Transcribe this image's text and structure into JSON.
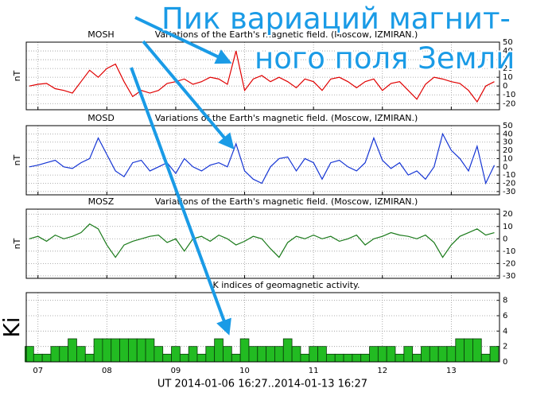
{
  "chart_data": [
    {
      "type": "line",
      "label": "MOSH",
      "title": "Variations of the Earth's magnetic field. (Moscow, IZMIRAN.)",
      "ylabel": "nT",
      "color": "#e00000",
      "grid": true,
      "xlim": [
        6.83,
        13.7
      ],
      "xticks": [
        7,
        8,
        9,
        10,
        11,
        12,
        13
      ],
      "ylim": [
        -27,
        50
      ],
      "yticks": [
        50,
        40,
        30,
        20,
        10,
        0,
        -10,
        -20
      ],
      "x": [
        6.875,
        7,
        7.125,
        7.25,
        7.375,
        7.5,
        7.625,
        7.75,
        7.875,
        8,
        8.125,
        8.25,
        8.375,
        8.5,
        8.625,
        8.75,
        8.875,
        9,
        9.125,
        9.25,
        9.375,
        9.5,
        9.625,
        9.75,
        9.875,
        10,
        10.125,
        10.25,
        10.375,
        10.5,
        10.625,
        10.75,
        10.875,
        11,
        11.125,
        11.25,
        11.375,
        11.5,
        11.625,
        11.75,
        11.875,
        12,
        12.125,
        12.25,
        12.375,
        12.5,
        12.625,
        12.75,
        12.875,
        13,
        13.125,
        13.25,
        13.375,
        13.5,
        13.625
      ],
      "values": [
        0,
        2,
        3,
        -3,
        -5,
        -8,
        5,
        18,
        10,
        20,
        25,
        5,
        -12,
        -5,
        -8,
        -5,
        3,
        5,
        8,
        2,
        5,
        10,
        8,
        2,
        40,
        -5,
        8,
        12,
        5,
        10,
        5,
        -2,
        8,
        5,
        -5,
        8,
        10,
        5,
        -2,
        5,
        8,
        -5,
        3,
        5,
        -5,
        -15,
        2,
        10,
        8,
        5,
        3,
        -5,
        -18,
        0,
        5
      ]
    },
    {
      "type": "line",
      "label": "MOSD",
      "title": "Variations of the Earth's magnetic field. (Moscow, IZMIRAN.)",
      "ylabel": "nT",
      "color": "#1434d4",
      "grid": true,
      "xlim": [
        6.83,
        13.7
      ],
      "xticks": [
        7,
        8,
        9,
        10,
        11,
        12,
        13
      ],
      "ylim": [
        -34,
        50
      ],
      "yticks": [
        50,
        40,
        30,
        20,
        10,
        0,
        -10,
        -20,
        -30
      ],
      "x": [
        6.875,
        7,
        7.125,
        7.25,
        7.375,
        7.5,
        7.625,
        7.75,
        7.875,
        8,
        8.125,
        8.25,
        8.375,
        8.5,
        8.625,
        8.75,
        8.875,
        9,
        9.125,
        9.25,
        9.375,
        9.5,
        9.625,
        9.75,
        9.875,
        10,
        10.125,
        10.25,
        10.375,
        10.5,
        10.625,
        10.75,
        10.875,
        11,
        11.125,
        11.25,
        11.375,
        11.5,
        11.625,
        11.75,
        11.875,
        12,
        12.125,
        12.25,
        12.375,
        12.5,
        12.625,
        12.75,
        12.875,
        13,
        13.125,
        13.25,
        13.375,
        13.5,
        13.625
      ],
      "values": [
        0,
        2,
        5,
        8,
        0,
        -2,
        5,
        10,
        35,
        15,
        -5,
        -12,
        5,
        8,
        -5,
        0,
        5,
        -8,
        10,
        0,
        -5,
        2,
        5,
        0,
        28,
        -5,
        -15,
        -20,
        0,
        10,
        12,
        -5,
        10,
        5,
        -15,
        5,
        8,
        0,
        -5,
        5,
        35,
        8,
        -2,
        5,
        -10,
        -5,
        -15,
        0,
        40,
        20,
        10,
        -5,
        25,
        -20,
        2
      ]
    },
    {
      "type": "line",
      "label": "MOSZ",
      "title": "Variations of the Earth's magnetic field. (Moscow, IZMIRAN.)",
      "ylabel": "nT",
      "color": "#1a7a1a",
      "grid": true,
      "xlim": [
        6.83,
        13.7
      ],
      "xticks": [
        7,
        8,
        9,
        10,
        11,
        12,
        13
      ],
      "ylim": [
        -32,
        24
      ],
      "yticks": [
        20,
        10,
        0,
        -10,
        -20,
        -30
      ],
      "x": [
        6.875,
        7,
        7.125,
        7.25,
        7.375,
        7.5,
        7.625,
        7.75,
        7.875,
        8,
        8.125,
        8.25,
        8.375,
        8.5,
        8.625,
        8.75,
        8.875,
        9,
        9.125,
        9.25,
        9.375,
        9.5,
        9.625,
        9.75,
        9.875,
        10,
        10.125,
        10.25,
        10.375,
        10.5,
        10.625,
        10.75,
        10.875,
        11,
        11.125,
        11.25,
        11.375,
        11.5,
        11.625,
        11.75,
        11.875,
        12,
        12.125,
        12.25,
        12.375,
        12.5,
        12.625,
        12.75,
        12.875,
        13,
        13.125,
        13.25,
        13.375,
        13.5,
        13.625
      ],
      "values": [
        0,
        2,
        -2,
        3,
        0,
        2,
        5,
        12,
        8,
        -5,
        -15,
        -5,
        -2,
        0,
        2,
        3,
        -3,
        0,
        -10,
        0,
        2,
        -2,
        3,
        0,
        -5,
        -2,
        2,
        0,
        -8,
        -15,
        -3,
        2,
        0,
        3,
        0,
        2,
        -2,
        0,
        3,
        -5,
        0,
        2,
        5,
        3,
        2,
        0,
        3,
        -3,
        -15,
        -5,
        2,
        5,
        8,
        3,
        5
      ]
    },
    {
      "type": "bar",
      "title": "K indices of geomagnetic activity.",
      "ylabel": "Ki",
      "color": "#22bb22",
      "grid": true,
      "xlim": [
        6.83,
        13.7
      ],
      "xticks": [
        {
          "value": 7,
          "label": "07"
        },
        {
          "value": 8,
          "label": "08"
        },
        {
          "value": 9,
          "label": "09"
        },
        {
          "value": 10,
          "label": "10"
        },
        {
          "value": 11,
          "label": "11"
        },
        {
          "value": 12,
          "label": "12"
        },
        {
          "value": 13,
          "label": "13"
        }
      ],
      "xlabel": "UT 2014-01-06 16:27..2014-01-13 16:27",
      "ylim": [
        0,
        9
      ],
      "yticks": [
        8,
        6,
        4,
        2,
        0
      ],
      "x": [
        6.875,
        7,
        7.125,
        7.25,
        7.375,
        7.5,
        7.625,
        7.75,
        7.875,
        8,
        8.125,
        8.25,
        8.375,
        8.5,
        8.625,
        8.75,
        8.875,
        9,
        9.125,
        9.25,
        9.375,
        9.5,
        9.625,
        9.75,
        9.875,
        10,
        10.125,
        10.25,
        10.375,
        10.5,
        10.625,
        10.75,
        10.875,
        11,
        11.125,
        11.25,
        11.375,
        11.5,
        11.625,
        11.75,
        11.875,
        12,
        12.125,
        12.25,
        12.375,
        12.5,
        12.625,
        12.75,
        12.875,
        13,
        13.125,
        13.25,
        13.375,
        13.5,
        13.625
      ],
      "values": [
        2,
        1,
        1,
        2,
        2,
        3,
        2,
        1,
        3,
        3,
        3,
        3,
        3,
        3,
        3,
        2,
        1,
        2,
        1,
        2,
        1,
        2,
        3,
        2,
        1,
        3,
        2,
        2,
        2,
        2,
        3,
        2,
        1,
        2,
        2,
        1,
        1,
        1,
        1,
        1,
        2,
        2,
        2,
        1,
        2,
        1,
        2,
        2,
        2,
        2,
        3,
        3,
        3,
        1,
        2
      ]
    }
  ],
  "annotation": {
    "lines": [
      "Пик вариаций магнит-",
      "ного поля Земли"
    ]
  }
}
